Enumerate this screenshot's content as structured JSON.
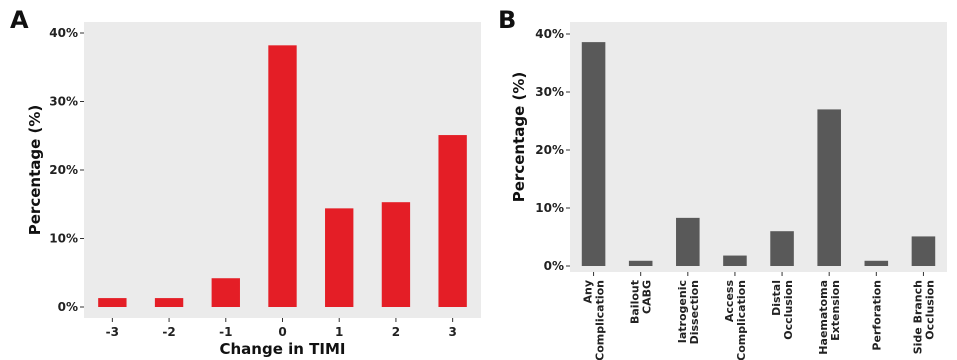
{
  "chart_data": [
    {
      "type": "bar",
      "panel_label": "A",
      "categories": [
        "-3",
        "-2",
        "-1",
        "0",
        "1",
        "2",
        "3"
      ],
      "values": [
        1.3,
        1.3,
        4.2,
        38.2,
        14.4,
        15.3,
        25.1
      ],
      "xlabel": "Change in TIMI",
      "ylabel": "Percentage (%)",
      "ylim": [
        0,
        40
      ],
      "yticks": [
        "0%",
        "10%",
        "20%",
        "30%",
        "40%"
      ],
      "ytick_values": [
        0,
        10,
        20,
        30,
        40
      ],
      "bar_color": "#e41e26",
      "background": "#ebebeb",
      "grid": false
    },
    {
      "type": "bar",
      "panel_label": "B",
      "categories": [
        [
          "Any",
          "Complication"
        ],
        [
          "Bailout",
          "CABG"
        ],
        [
          "Iatrogenic",
          "Dissection"
        ],
        [
          "Access",
          "Complication"
        ],
        [
          "Distal",
          "Occlusion"
        ],
        [
          "Haematoma",
          "Extension"
        ],
        [
          "Perforation"
        ],
        [
          "Side Branch",
          "Occlusion"
        ]
      ],
      "values": [
        38.6,
        0.9,
        8.3,
        1.8,
        6.0,
        27.0,
        0.9,
        5.1
      ],
      "xlabel": "",
      "ylabel": "Percentage (%)",
      "ylim": [
        0,
        40
      ],
      "yticks": [
        "0%",
        "10%",
        "20%",
        "30%",
        "40%"
      ],
      "ytick_values": [
        0,
        10,
        20,
        30,
        40
      ],
      "bar_color": "#595959",
      "background": "#ebebeb",
      "grid": false
    }
  ]
}
